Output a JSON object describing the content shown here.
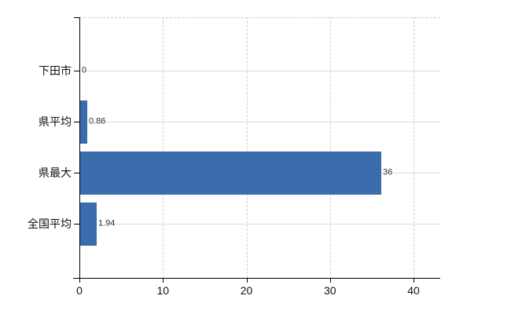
{
  "chart_data": {
    "type": "bar",
    "orientation": "horizontal",
    "title": "",
    "categories": [
      "下田市",
      "県平均",
      "県最大",
      "全国平均"
    ],
    "values": [
      0,
      0.86,
      36,
      1.94
    ],
    "value_labels": [
      "0",
      "0.86",
      "36",
      "1.94"
    ],
    "x_ticks": [
      0,
      10,
      20,
      30,
      40
    ],
    "x_tick_labels": [
      "0",
      "10",
      "20",
      "30",
      "40"
    ],
    "xlim": [
      0,
      43.2
    ],
    "grid": {
      "horizontal": "solid",
      "vertical": "dashed",
      "plot_top_border": "dashed"
    },
    "legend": "none",
    "colors": {
      "bar": "#3b6dad",
      "gridline_horizontal": "#d7ded7",
      "gridline_vertical": "#d5cfca",
      "axis": "#000000",
      "category_text": "#111111",
      "value_text": "#2b2b2b",
      "background": "#ffffff"
    }
  }
}
